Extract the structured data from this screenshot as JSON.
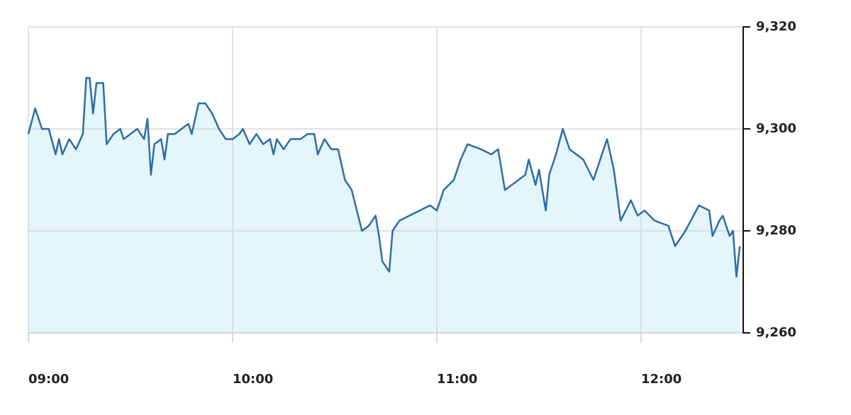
{
  "chart_data": {
    "type": "area",
    "x": [
      "09:00",
      "09:02",
      "09:04",
      "09:06",
      "09:08",
      "09:09",
      "09:10",
      "09:12",
      "09:14",
      "09:16",
      "09:17",
      "09:18",
      "09:19",
      "09:20",
      "09:22",
      "09:23",
      "09:25",
      "09:27",
      "09:28",
      "09:30",
      "09:32",
      "09:34",
      "09:35",
      "09:36",
      "09:37",
      "09:39",
      "09:40",
      "09:41",
      "09:43",
      "09:45",
      "09:47",
      "09:48",
      "09:50",
      "09:52",
      "09:54",
      "09:56",
      "09:58",
      "10:00",
      "10:02",
      "10:03",
      "10:05",
      "10:07",
      "10:09",
      "10:11",
      "10:12",
      "10:13",
      "10:15",
      "10:17",
      "10:20",
      "10:22",
      "10:24",
      "10:25",
      "10:27",
      "10:29",
      "10:31",
      "10:33",
      "10:35",
      "10:38",
      "10:40",
      "10:42",
      "10:43",
      "10:44",
      "10:46",
      "10:47",
      "10:49",
      "10:52",
      "10:55",
      "10:58",
      "11:00",
      "11:02",
      "11:05",
      "11:07",
      "11:09",
      "11:13",
      "11:16",
      "11:18",
      "11:20",
      "11:24",
      "11:26",
      "11:27",
      "11:29",
      "11:30",
      "11:32",
      "11:33",
      "11:35",
      "11:37",
      "11:39",
      "11:43",
      "11:46",
      "11:48",
      "11:50",
      "11:52",
      "11:54",
      "11:57",
      "11:59",
      "12:01",
      "12:04",
      "12:08",
      "12:10",
      "12:13",
      "12:17",
      "12:20",
      "12:21",
      "12:23",
      "12:24",
      "12:26",
      "12:27",
      "12:28",
      "12:29"
    ],
    "values": [
      9299,
      9304,
      9300,
      9300,
      9295,
      9298,
      9295,
      9298,
      9296,
      9299,
      9310,
      9310,
      9303,
      9309,
      9309,
      9297,
      9299,
      9300,
      9298,
      9299,
      9300,
      9298,
      9302,
      9291,
      9297,
      9298,
      9294,
      9299,
      9299,
      9300,
      9301,
      9299,
      9305,
      9305,
      9303,
      9300,
      9298,
      9298,
      9299,
      9300,
      9297,
      9299,
      9297,
      9298,
      9295,
      9298,
      9296,
      9298,
      9298,
      9299,
      9299,
      9295,
      9298,
      9296,
      9296,
      9290,
      9288,
      9280,
      9281,
      9283,
      9279,
      9274,
      9272,
      9280,
      9282,
      9283,
      9284,
      9285,
      9284,
      9288,
      9290,
      9294,
      9297,
      9296,
      9295,
      9296,
      9288,
      9290,
      9291,
      9294,
      9289,
      9292,
      9284,
      9291,
      9295,
      9300,
      9296,
      9294,
      9290,
      9294,
      9298,
      9292,
      9282,
      9286,
      9283,
      9284,
      9282,
      9281,
      9277,
      9280,
      9285,
      9284,
      9279,
      9282,
      9283,
      9279,
      9280,
      9271,
      9277
    ],
    "color": "#2e6da4",
    "fill_color": "#e4f5fb",
    "xlim": [
      "09:00",
      "12:30"
    ],
    "xticks": [
      "09:00",
      "10:00",
      "11:00",
      "12:00"
    ],
    "ylim": [
      9260,
      9320
    ],
    "yticks": [
      {
        "value": 9260,
        "label": "9,260"
      },
      {
        "value": 9280,
        "label": "9,280"
      },
      {
        "value": 9300,
        "label": "9,300"
      },
      {
        "value": 9320,
        "label": "9,320"
      }
    ],
    "grid": true
  }
}
